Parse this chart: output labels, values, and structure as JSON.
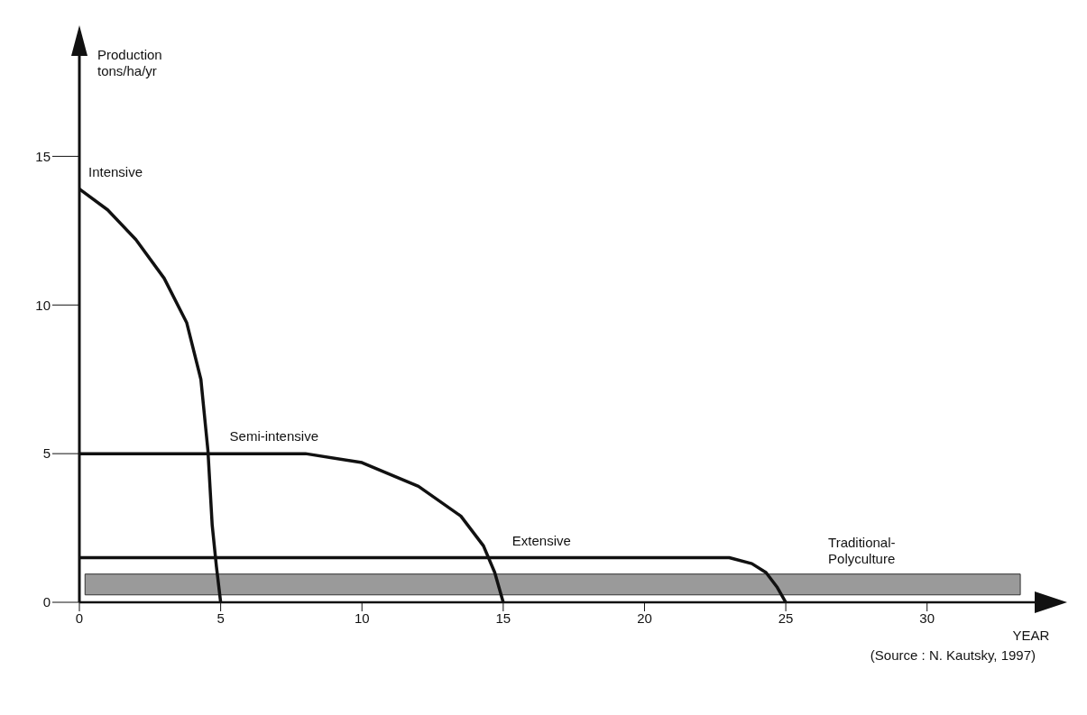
{
  "chart_data": {
    "type": "line",
    "ylabel": "Production\ntons/ha/yr",
    "xlabel": "YEAR",
    "xlim": [
      0,
      34
    ],
    "xticks": [
      0,
      5,
      10,
      15,
      20,
      25,
      30
    ],
    "ylim": [
      0,
      18.5
    ],
    "yticks": [
      0,
      5,
      10,
      15
    ],
    "grid": false,
    "legend": false,
    "marker": "none",
    "line_style": "solid",
    "series": [
      {
        "name": "Intensive",
        "color": "#111111",
        "x": [
          0,
          1,
          2,
          3,
          3.8,
          4.3,
          4.55,
          4.7,
          4.85,
          5
        ],
        "values": [
          13.9,
          13.2,
          12.2,
          10.9,
          9.4,
          7.5,
          5.1,
          2.6,
          1.2,
          0
        ]
      },
      {
        "name": "Semi-intensive",
        "color": "#111111",
        "x": [
          0,
          8,
          10,
          12,
          13.5,
          14.3,
          14.7,
          15
        ],
        "values": [
          5,
          5,
          4.7,
          3.9,
          2.9,
          1.9,
          1.0,
          0
        ]
      },
      {
        "name": "Extensive",
        "color": "#111111",
        "x": [
          0,
          23,
          23.8,
          24.3,
          24.7,
          25
        ],
        "values": [
          1.5,
          1.5,
          1.3,
          1.0,
          0.5,
          0
        ]
      }
    ],
    "bands": [
      {
        "axis": "y",
        "from": 0.25,
        "to": 0.95,
        "label": "Traditional-\nPolyculture",
        "color": "#9a9a9a"
      }
    ],
    "annotations": [
      "(Source : N. Kautsky, 1997)"
    ]
  }
}
